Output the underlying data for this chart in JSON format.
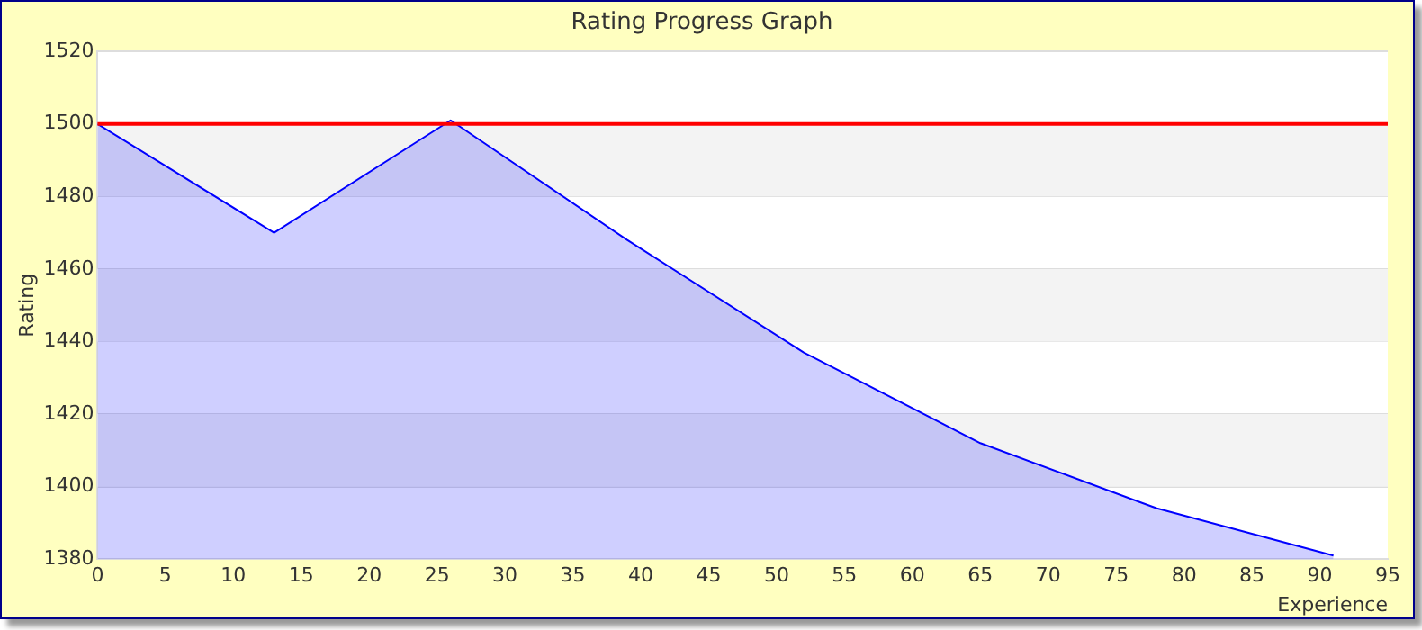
{
  "chart_data": {
    "type": "area",
    "title": "Rating Progress Graph",
    "xlabel": "Experience",
    "ylabel": "Rating",
    "x": [
      0,
      13,
      26,
      39,
      52,
      65,
      78,
      91
    ],
    "series": [
      {
        "color": "#0000ff",
        "values": [
          1500,
          1470,
          1501,
          1468,
          1437,
          1412,
          1394,
          1381
        ]
      }
    ],
    "xlim": [
      0,
      95
    ],
    "xticks": [
      0,
      5,
      10,
      15,
      20,
      25,
      30,
      35,
      40,
      45,
      50,
      55,
      60,
      65,
      70,
      75,
      80,
      85,
      90,
      95
    ],
    "ylim": [
      1380,
      1520
    ],
    "yticks": [
      1380,
      1400,
      1420,
      1440,
      1460,
      1480,
      1500,
      1520
    ],
    "ref_lines": [
      {
        "axis": "y",
        "value": 1500,
        "color": "#ff0000"
      }
    ],
    "grid": "y",
    "legend": false,
    "marker": "none"
  }
}
